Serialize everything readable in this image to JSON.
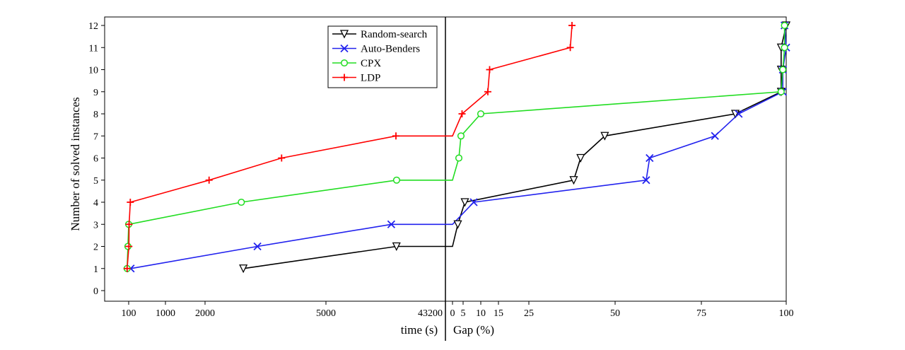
{
  "chart_data": {
    "type": "line",
    "ylabel": "Number of solved instances",
    "xlabel_left": "time (s)",
    "xlabel_right": "Gap (%)",
    "ylim": [
      0,
      12
    ],
    "y_ticks": [
      "0",
      "1",
      "2",
      "3",
      "4",
      "5",
      "6",
      "7",
      "8",
      "9",
      "10",
      "11",
      "12"
    ],
    "left_panel": {
      "x_scale": "nonlinear",
      "x_tick_labels": [
        "100",
        "1000",
        "2000",
        "5000",
        "43200"
      ],
      "x_tick_values": [
        100,
        1000,
        2000,
        5000,
        43200
      ],
      "xlim": [
        0,
        43200
      ]
    },
    "right_panel": {
      "x_tick_labels": [
        "0",
        "5",
        "10",
        "15",
        "25",
        "50",
        "75",
        "100"
      ],
      "x_tick_values": [
        0,
        5,
        10,
        15,
        25,
        50,
        75,
        100
      ],
      "xlim": [
        0,
        100
      ]
    },
    "series": [
      {
        "name": "Random-search",
        "color": "#000000",
        "marker": "triangle-down",
        "time_points": [
          [
            2950,
            1
          ],
          [
            6900,
            2
          ],
          [
            43200,
            2
          ]
        ],
        "gap_points": [
          [
            0,
            2
          ],
          [
            2.5,
            3
          ],
          [
            5.5,
            4
          ],
          [
            38,
            5
          ],
          [
            40,
            6
          ],
          [
            47,
            7
          ],
          [
            85,
            8
          ],
          [
            98.5,
            9
          ],
          [
            98.5,
            10
          ],
          [
            98.5,
            11
          ],
          [
            100,
            12
          ]
        ]
      },
      {
        "name": "Auto-Benders",
        "color": "#2222ee",
        "marker": "x",
        "time_points": [
          [
            150,
            1
          ],
          [
            3300,
            2
          ],
          [
            6400,
            3
          ],
          [
            43200,
            3
          ]
        ],
        "gap_points": [
          [
            0,
            3
          ],
          [
            8,
            4
          ],
          [
            59,
            5
          ],
          [
            60,
            6
          ],
          [
            79,
            7
          ],
          [
            86,
            8
          ],
          [
            99,
            9
          ],
          [
            99,
            10
          ],
          [
            100,
            11
          ],
          [
            99.5,
            12
          ]
        ]
      },
      {
        "name": "CPX",
        "color": "#22dd22",
        "marker": "circle",
        "time_points": [
          [
            90,
            1
          ],
          [
            95,
            2
          ],
          [
            100,
            3
          ],
          [
            2900,
            4
          ],
          [
            7000,
            5
          ],
          [
            43200,
            5
          ]
        ],
        "gap_points": [
          [
            0,
            5
          ],
          [
            3,
            6
          ],
          [
            4,
            7
          ],
          [
            10,
            8
          ],
          [
            98.5,
            9
          ],
          [
            99,
            10
          ],
          [
            99.5,
            11
          ],
          [
            99.5,
            12
          ]
        ]
      },
      {
        "name": "LDP",
        "color": "#ff0000",
        "marker": "plus",
        "time_points": [
          [
            90,
            1
          ],
          [
            105,
            2
          ],
          [
            110,
            3
          ],
          [
            140,
            4
          ],
          [
            2100,
            5
          ],
          [
            3900,
            6
          ],
          [
            6500,
            7
          ],
          [
            43200,
            7
          ]
        ],
        "gap_points": [
          [
            0,
            7
          ],
          [
            4.5,
            8
          ],
          [
            12,
            9
          ],
          [
            12.5,
            10
          ],
          [
            37,
            11
          ],
          [
            37.5,
            12
          ]
        ]
      }
    ],
    "legend": {
      "position": "top-center",
      "entries": [
        "Random-search",
        "Auto-Benders",
        "CPX",
        "LDP"
      ]
    }
  }
}
